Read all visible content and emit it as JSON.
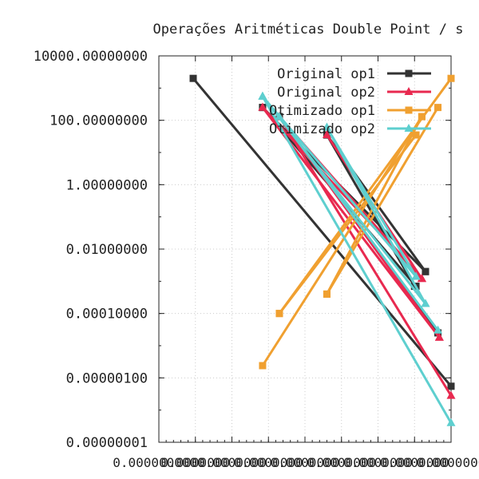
{
  "chart_data": {
    "type": "line",
    "title": "Operações Aritméticas Double Point / s",
    "xlabel": "",
    "ylabel": "",
    "yscale": "log",
    "ylim": [
      1e-08,
      10000
    ],
    "y_ticks": [
      {
        "value": 10000,
        "label": "10000.00000000"
      },
      {
        "value": 100,
        "label": "100.00000000"
      },
      {
        "value": 1,
        "label": "1.00000000"
      },
      {
        "value": 0.01,
        "label": "0.01000000"
      },
      {
        "value": 0.0001,
        "label": "0.00010000"
      },
      {
        "value": 1e-06,
        "label": "0.00000100"
      },
      {
        "value": 1e-08,
        "label": "0.00000001"
      }
    ],
    "xlim": [
      0,
      4
    ],
    "x_ticks": [
      {
        "value": 0,
        "label": "0.0000000000"
      },
      {
        "value": 0.5,
        "label": "0.0000000"
      },
      {
        "value": 1,
        "label": "0.0000000"
      },
      {
        "value": 1.5,
        "label": "0.0000000"
      },
      {
        "value": 2,
        "label": "0.0000000"
      },
      {
        "value": 2.5,
        "label": "0.0000000"
      },
      {
        "value": 3,
        "label": "0.0000000"
      },
      {
        "value": 3.5,
        "label": "0.0000000"
      },
      {
        "value": 4,
        "label": "0.0000000"
      }
    ],
    "grid": true,
    "legend_position": "top-right",
    "series": [
      {
        "name": "Original op1",
        "color": "#333333",
        "marker": "square",
        "segments": [
          [
            [
              0.47,
              2000
            ],
            [
              4.0,
              5.5e-07
            ]
          ],
          [
            [
              1.42,
              250
            ],
            [
              3.52,
              0.0007
            ]
          ],
          [
            [
              1.42,
              250
            ],
            [
              3.65,
              0.002
            ]
          ],
          [
            [
              2.3,
              35
            ],
            [
              3.5,
              0.0007
            ]
          ],
          [
            [
              2.3,
              35
            ],
            [
              3.65,
              0.002
            ]
          ],
          [
            [
              1.65,
              130
            ],
            [
              3.82,
              2.5e-05
            ]
          ]
        ]
      },
      {
        "name": "Original op2",
        "color": "#e8294f",
        "marker": "triangle",
        "segments": [
          [
            [
              1.42,
              250
            ],
            [
              3.6,
              0.0012
            ]
          ],
          [
            [
              1.65,
              130
            ],
            [
              3.6,
              0.0012
            ]
          ],
          [
            [
              1.42,
              250
            ],
            [
              3.84,
              1.8e-05
            ]
          ],
          [
            [
              1.65,
              130
            ],
            [
              3.84,
              1.8e-05
            ]
          ],
          [
            [
              2.3,
              35
            ],
            [
              3.6,
              0.0012
            ]
          ],
          [
            [
              1.65,
              130
            ],
            [
              4.0,
              2.8e-07
            ]
          ]
        ]
      },
      {
        "name": "Otimizado op1",
        "color": "#f0a030",
        "marker": "square",
        "segments": [
          [
            [
              1.42,
              2.4e-06
            ],
            [
              3.6,
              130
            ]
          ],
          [
            [
              1.65,
              0.0001
            ],
            [
              3.52,
              35
            ]
          ],
          [
            [
              2.3,
              0.0004
            ],
            [
              3.82,
              250
            ]
          ],
          [
            [
              1.65,
              0.0001
            ],
            [
              4.0,
              2000
            ]
          ],
          [
            [
              2.3,
              0.0004
            ],
            [
              3.6,
              130
            ]
          ]
        ]
      },
      {
        "name": "Otimizado op2",
        "color": "#5ecfcf",
        "marker": "triangle",
        "segments": [
          [
            [
              1.42,
              550
            ],
            [
              3.52,
              0.0014
            ]
          ],
          [
            [
              1.42,
              550
            ],
            [
              3.65,
              0.0002
            ]
          ],
          [
            [
              1.65,
              130
            ],
            [
              3.82,
              3e-05
            ]
          ],
          [
            [
              2.3,
              60
            ],
            [
              3.52,
              0.0014
            ]
          ],
          [
            [
              2.3,
              60
            ],
            [
              3.65,
              0.0002
            ]
          ],
          [
            [
              1.42,
              550
            ],
            [
              4.0,
              4e-08
            ]
          ]
        ]
      }
    ]
  }
}
